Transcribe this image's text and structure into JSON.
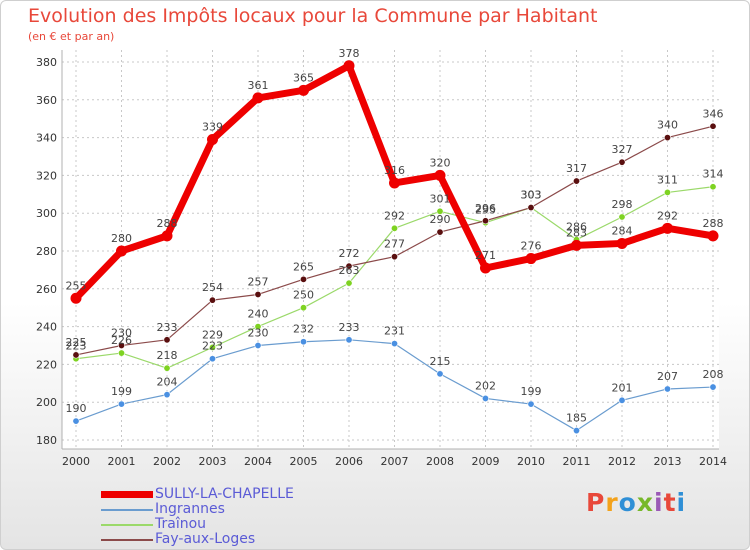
{
  "header": {
    "title": "Evolution des Impôts locaux pour la Commune par Habitant",
    "subtitle": "(en € et par an)"
  },
  "logo": {
    "text": "Proxiti",
    "colors": [
      "#e8483a",
      "#f3a21b",
      "#2f8fd6",
      "#77b82a",
      "#9b59b6",
      "#e8483a",
      "#2f8fd6"
    ]
  },
  "colors": {
    "grid": "#c8c8c8",
    "axis": "#b0b0b0",
    "tick_text": "#333333",
    "label_text": "#444444",
    "legend_text": "#5b5bd6",
    "title": "#e8483a"
  },
  "chart_data": {
    "type": "line",
    "title": "Evolution des Impôts locaux pour la Commune par Habitant",
    "subtitle": "(en € et par an)",
    "xlabel": "",
    "ylabel": "",
    "x": [
      "2000",
      "2001",
      "2002",
      "2003",
      "2004",
      "2005",
      "2006",
      "2007",
      "2008",
      "2009",
      "2010",
      "2011",
      "2012",
      "2013",
      "2014"
    ],
    "ylim": [
      180,
      380
    ],
    "yticks": [
      180,
      200,
      220,
      240,
      260,
      280,
      300,
      320,
      340,
      360,
      380
    ],
    "grid": true,
    "legend": "bottom-left",
    "series": [
      {
        "name": "SULLY-LA-CHAPELLE",
        "color": "#ee0000",
        "marker": "#ee0000",
        "width": 7,
        "values": [
          255,
          280,
          288,
          339,
          361,
          365,
          378,
          316,
          320,
          271,
          276,
          283,
          284,
          292,
          288
        ]
      },
      {
        "name": "Ingrannes",
        "color": "#6a9ccf",
        "marker": "#4a90e2",
        "width": 1.2,
        "values": [
          190,
          199,
          204,
          223,
          230,
          232,
          233,
          231,
          215,
          202,
          199,
          185,
          201,
          207,
          208
        ]
      },
      {
        "name": "Traînou",
        "color": "#9bd96a",
        "marker": "#7ed321",
        "width": 1.2,
        "values": [
          223,
          226,
          218,
          229,
          240,
          250,
          263,
          292,
          301,
          295,
          303,
          286,
          298,
          311,
          314
        ]
      },
      {
        "name": "Fay-aux-Loges",
        "color": "#8b4a4a",
        "marker": "#5a0f0f",
        "width": 1.2,
        "values": [
          225,
          230,
          233,
          254,
          257,
          265,
          272,
          277,
          290,
          296,
          303,
          317,
          327,
          340,
          346
        ]
      }
    ]
  }
}
